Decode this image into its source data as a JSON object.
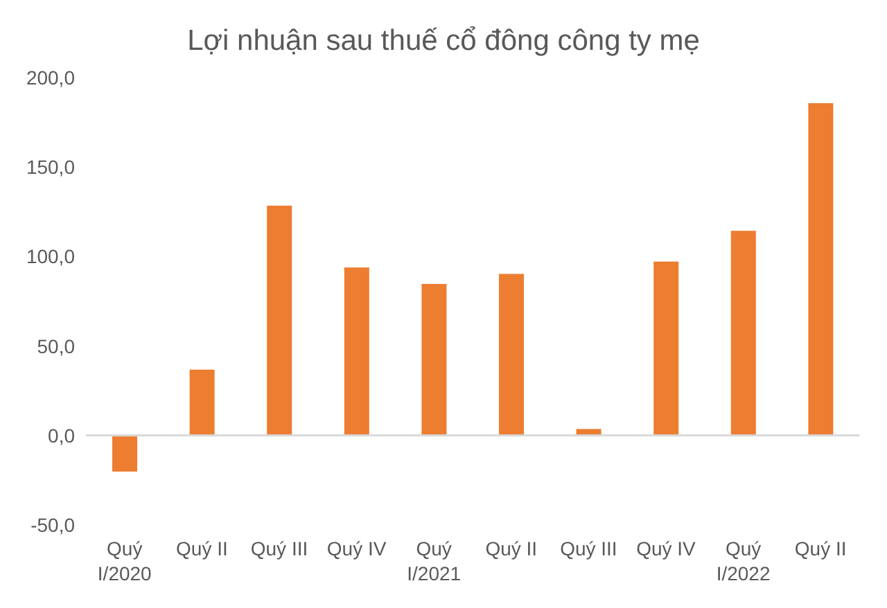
{
  "chart_data": {
    "type": "bar",
    "title": "Lợi nhuận sau thuế cổ đông công ty mẹ",
    "categories": [
      "Quý I/2020",
      "Quý II",
      "Quý III",
      "Quý IV",
      "Quý I/2021",
      "Quý II",
      "Quý III",
      "Quý IV",
      "Quý I/2022",
      "Quý II"
    ],
    "values": [
      -20.2,
      36.8,
      128.4,
      93.9,
      84.7,
      90.3,
      3.6,
      97.2,
      114.4,
      185.7
    ],
    "color": "#ed7d31",
    "ylim": [
      -50,
      200
    ],
    "yticks": [
      {
        "value": -50,
        "label": "-50,0"
      },
      {
        "value": 0,
        "label": "0,0"
      },
      {
        "value": 50,
        "label": "50,0"
      },
      {
        "value": 100,
        "label": "100,0"
      },
      {
        "value": 150,
        "label": "150,0"
      },
      {
        "value": 200,
        "label": "200,0"
      }
    ],
    "ref_lines": [
      {
        "axis": "y",
        "value": 0,
        "color": "#d9d9d9"
      }
    ],
    "grid": false,
    "legend": false
  }
}
